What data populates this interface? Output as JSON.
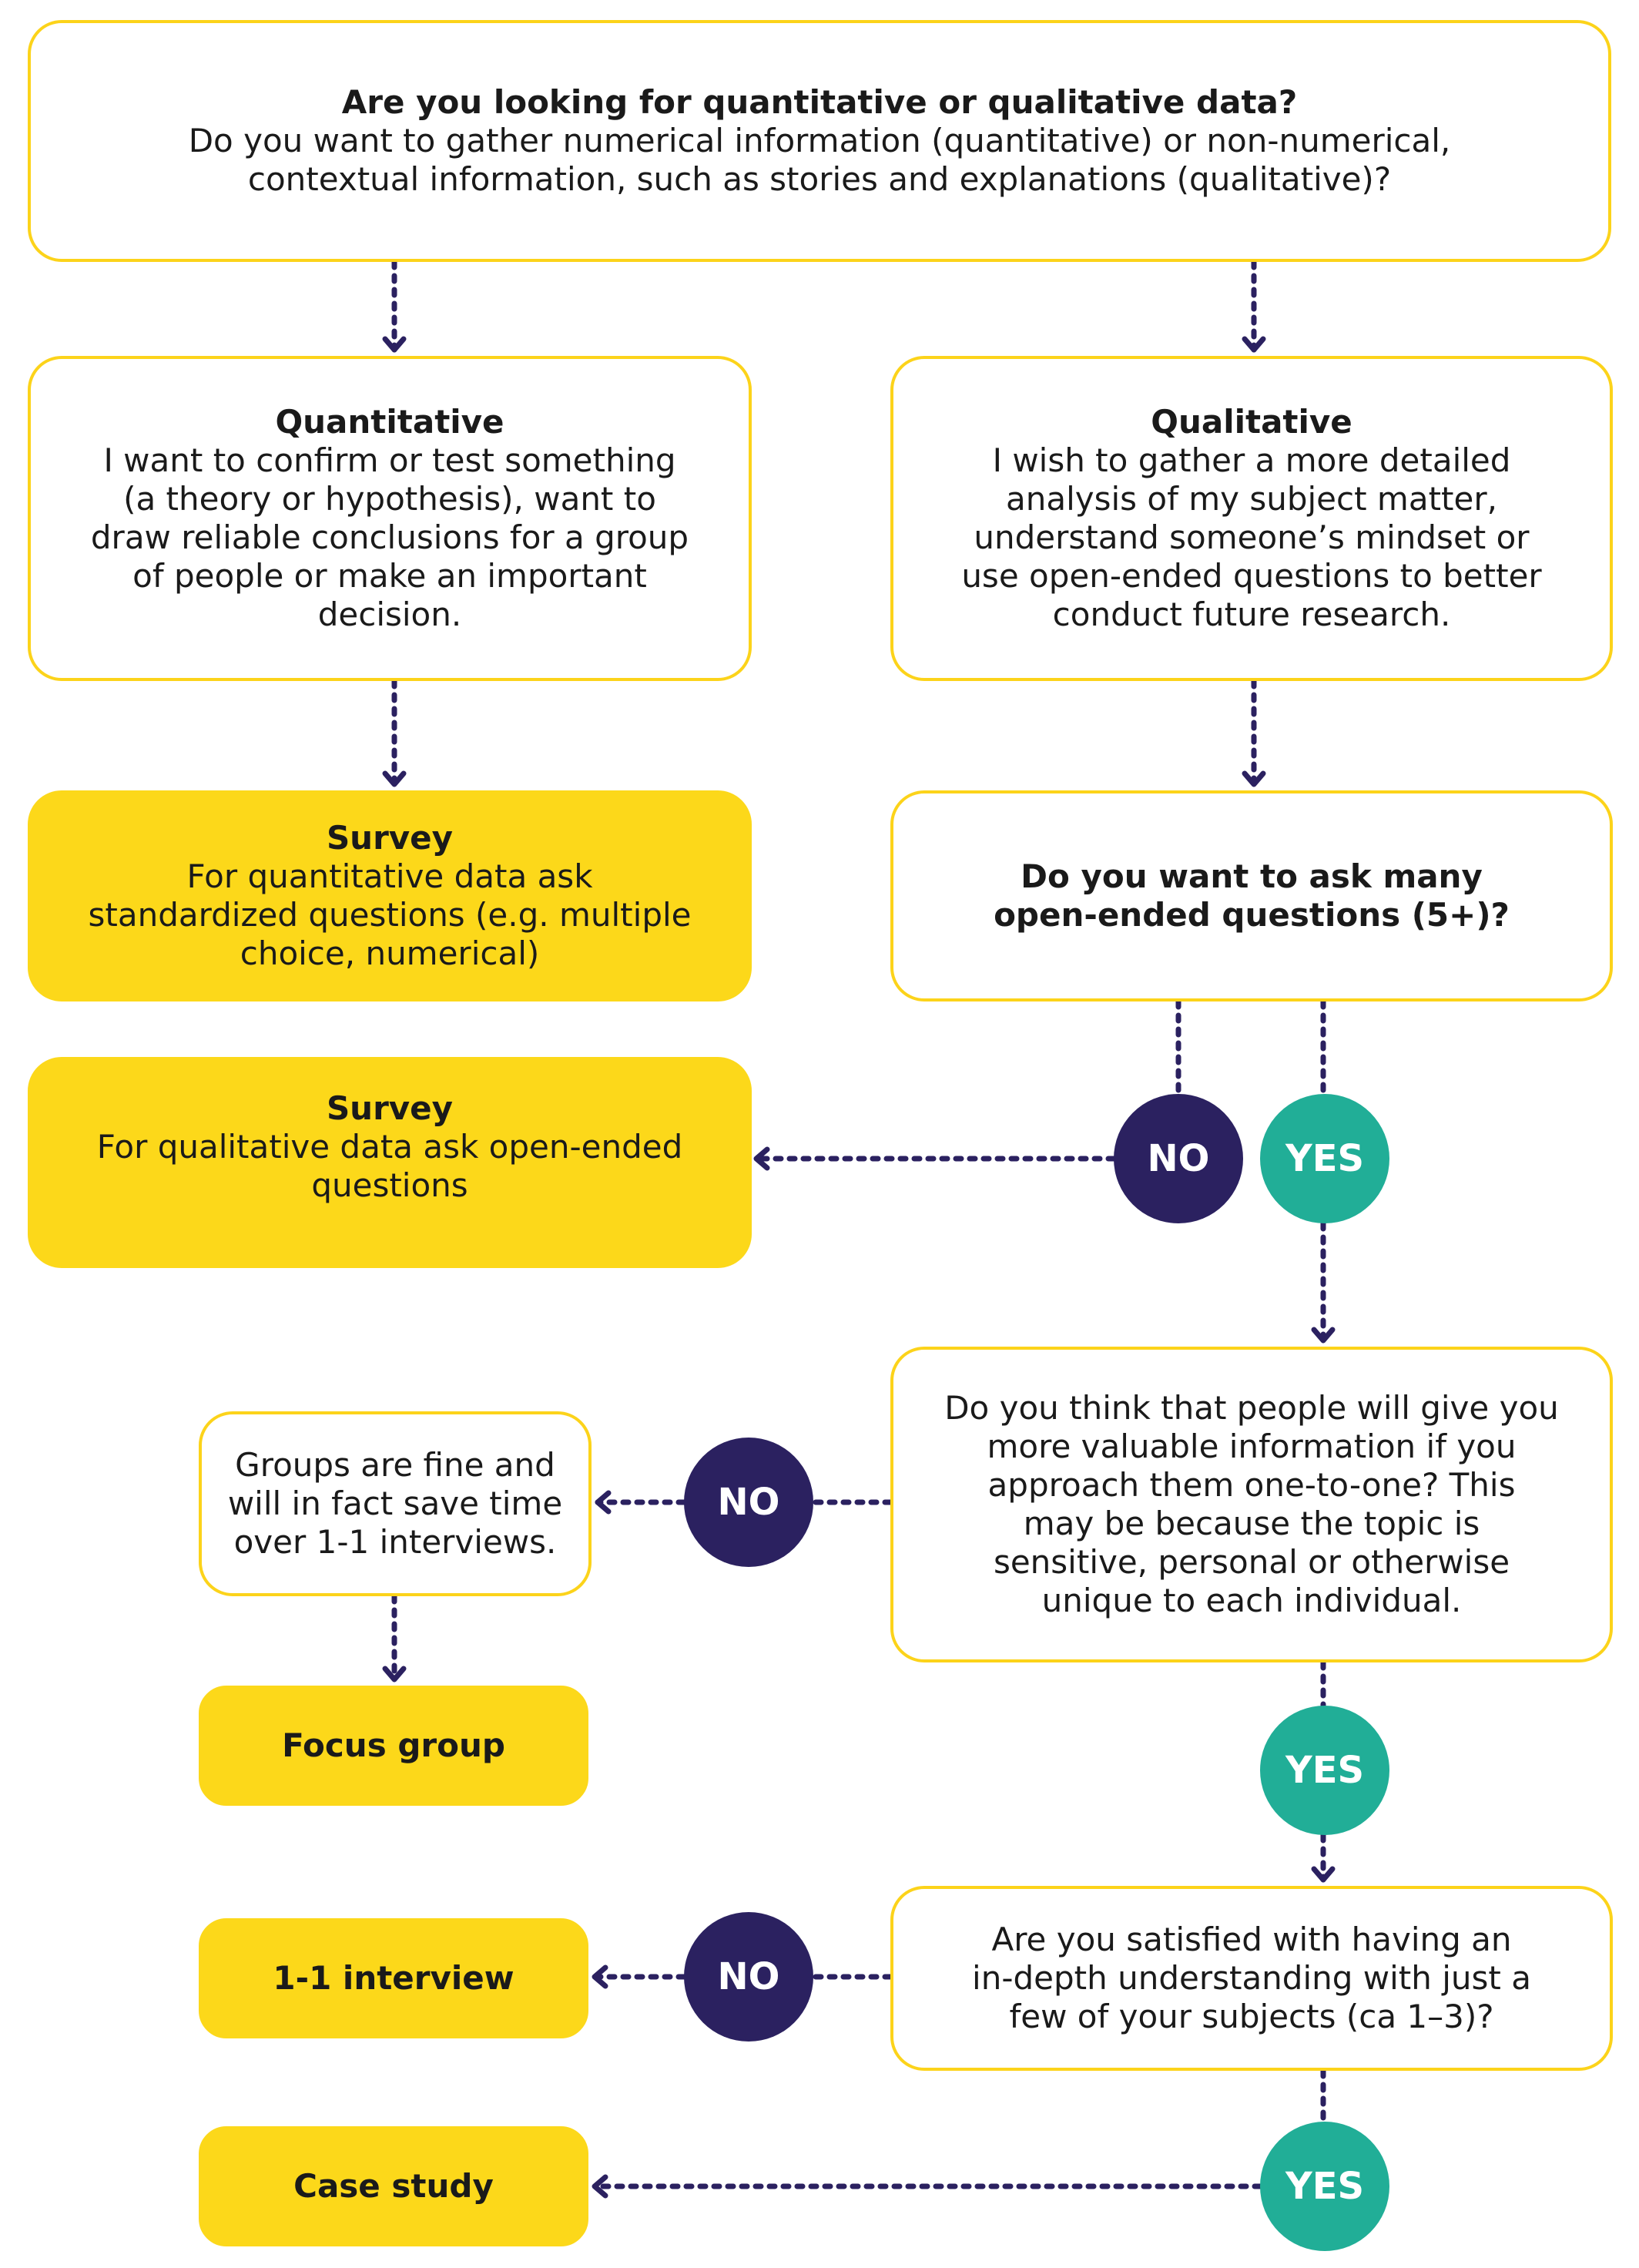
{
  "colors": {
    "accent_yellow": "#fcd81a",
    "no_navy": "#2b2160",
    "yes_teal": "#21ae97",
    "arrow": "#2b2160"
  },
  "top": {
    "title": "Are you looking for quantitative or qualitative data?",
    "lines": [
      "Do you want to gather numerical information (quantitative) or non-numerical,",
      "contextual information, such as stories and explanations (qualitative)?"
    ]
  },
  "quantitative": {
    "title": "Quantitative",
    "lines": [
      "I want to confirm or test something",
      "(a theory or hypothesis), want to",
      "draw reliable conclusions for a group",
      "of people or make an important",
      "decision."
    ]
  },
  "qualitative": {
    "title": "Qualitative",
    "lines": [
      "I wish to gather a more detailed",
      "analysis of my subject matter,",
      "understand someone’s mindset or",
      "use open-ended questions to better",
      "conduct future research."
    ]
  },
  "survey_quant": {
    "title": "Survey",
    "lines": [
      "For quantitative data ask",
      "standardized questions (e.g. multiple",
      "choice, numerical)"
    ]
  },
  "survey_qual": {
    "title": "Survey",
    "lines": [
      "For qualitative data ask open-ended",
      "questions"
    ]
  },
  "q_many_questions": {
    "lines": [
      "Do you want to ask many",
      "open-ended questions (5+)?"
    ]
  },
  "q_one_to_one": {
    "lines": [
      "Do you think that people will give you",
      "more valuable information if you",
      "approach them one-to-one? This",
      "may be because the topic is",
      "sensitive, personal or otherwise",
      "unique to each individual."
    ]
  },
  "groups_fine": {
    "lines": [
      "Groups are fine and",
      "will in fact save time",
      "over 1-1 interviews."
    ]
  },
  "focus_group": {
    "title": "Focus group"
  },
  "q_satisfied": {
    "lines": [
      "Are you satisfied with having an",
      "in-depth understanding with just a",
      "few of your subjects (ca 1–3)?"
    ]
  },
  "interview": {
    "title": "1-1 interview"
  },
  "case_study": {
    "title": "Case study"
  },
  "decisions": {
    "no": "NO",
    "yes": "YES"
  }
}
